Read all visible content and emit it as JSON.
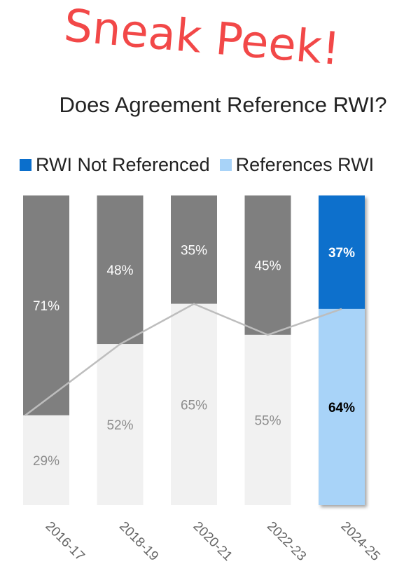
{
  "header": {
    "stamp": "Sneak Peek!",
    "title": "Does Agreement Reference RWI?"
  },
  "colors": {
    "not_referenced_highlight": "#0b6fcc",
    "references_highlight": "#a8d3f8",
    "not_referenced_past": "#7f7f7f",
    "references_past": "#f1f1f1",
    "trend_line": "#bdbdbd",
    "stamp": "#f24848"
  },
  "chart_data": {
    "type": "bar",
    "stacked": true,
    "title": "Does Agreement Reference RWI?",
    "legend_position": "top-left",
    "categories": [
      "2016-17",
      "2018-19",
      "2020-21",
      "2022-23",
      "2024-25"
    ],
    "series": [
      {
        "name": "RWI Not Referenced",
        "values": [
          71,
          48,
          35,
          45,
          37
        ],
        "labels": [
          "71%",
          "48%",
          "35%",
          "45%",
          "37%"
        ]
      },
      {
        "name": "References RWI",
        "values": [
          29,
          52,
          65,
          55,
          64
        ],
        "labels": [
          "29%",
          "52%",
          "65%",
          "55%",
          "64%"
        ]
      }
    ],
    "trend_line": {
      "series": "References RWI",
      "values": [
        29,
        52,
        65,
        55,
        64
      ]
    },
    "highlighted_category": "2024-25",
    "ylim": [
      0,
      100
    ],
    "grid": false
  }
}
